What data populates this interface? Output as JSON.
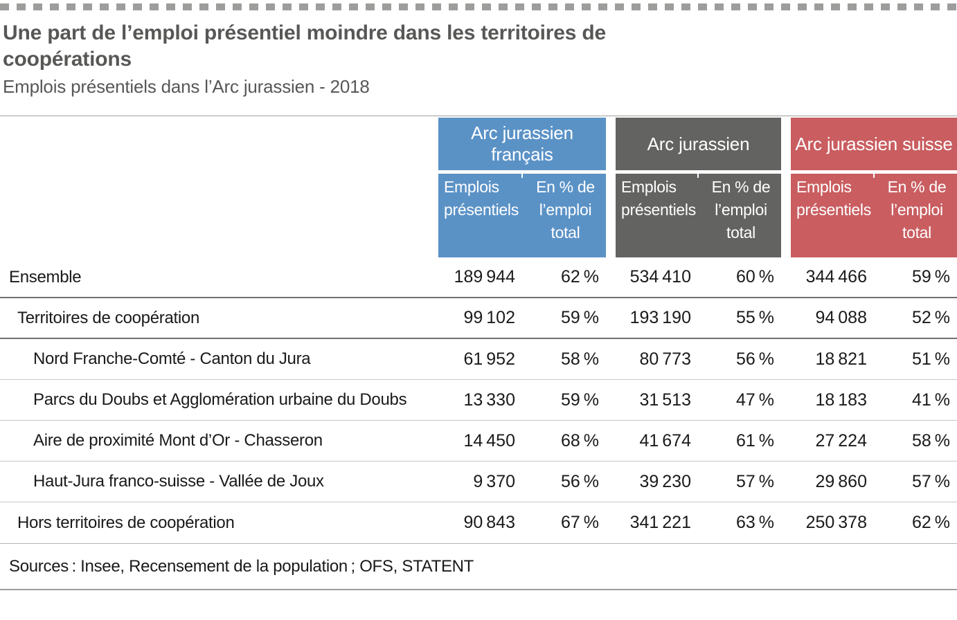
{
  "meta": {
    "accent_blue": "#5b92c6",
    "accent_gray": "#636362",
    "accent_red": "#c95d60",
    "title_color": "#575756",
    "dash_color": "#9d9d9c"
  },
  "header": {
    "title_line1": "Une part de l’emploi présentiel moindre dans les territoires de",
    "title_line2": "coopérations",
    "subtitle": "Emplois présentiels dans l’Arc jurassien - 2018"
  },
  "table": {
    "groups": [
      {
        "label": "Arc jurassien français",
        "col1": "Emplois présentiels",
        "col2": "En % de l’emploi total",
        "color": "#5b92c6"
      },
      {
        "label": "Arc jurassien",
        "col1": "Emplois présentiels",
        "col2": "En % de l’emploi total",
        "color": "#636362"
      },
      {
        "label": "Arc jurassien suisse",
        "col1": "Emplois présentiels",
        "col2": "En % de l’emploi total",
        "color": "#c95d60"
      }
    ],
    "rows": [
      {
        "label": "Ensemble",
        "values": [
          "189 944",
          "62 %",
          "534 410",
          "60 %",
          "344 466",
          "59 %"
        ]
      },
      {
        "label": "Territoires de coopération",
        "values": [
          "99 102",
          "59 %",
          "193 190",
          "55 %",
          "94 088",
          "52 %"
        ]
      },
      {
        "label": "Nord Franche-Comté - Canton du Jura",
        "values": [
          "61 952",
          "58 %",
          "80 773",
          "56 %",
          "18 821",
          "51 %"
        ]
      },
      {
        "label": "Parcs du Doubs et Agglomération urbaine du Doubs",
        "values": [
          "13 330",
          "59 %",
          "31 513",
          "47 %",
          "18 183",
          "41 %"
        ]
      },
      {
        "label": "Aire de proximité Mont d’Or - Chasseron",
        "values": [
          "14 450",
          "68 %",
          "41 674",
          "61 %",
          "27 224",
          "58 %"
        ]
      },
      {
        "label": "Haut-Jura franco-suisse - Vallée de Joux",
        "values": [
          "9 370",
          "56 %",
          "39 230",
          "57 %",
          "29 860",
          "57 %"
        ]
      },
      {
        "label": "Hors territoires de coopération",
        "values": [
          "90 843",
          "67 %",
          "341 221",
          "63 %",
          "250 378",
          "62 %"
        ]
      }
    ]
  },
  "footer": {
    "sources": "Sources : Insee, Recensement de la population ; OFS, STATENT"
  },
  "chart_data": {
    "type": "table",
    "title": "Une part de l’emploi présentiel moindre dans les territoires de coopérations",
    "subtitle": "Emplois présentiels dans l’Arc jurassien - 2018",
    "column_groups": [
      {
        "name": "Arc jurassien français",
        "columns": [
          "Emplois présentiels",
          "En % de l’emploi total"
        ]
      },
      {
        "name": "Arc jurassien",
        "columns": [
          "Emplois présentiels",
          "En % de l’emploi total"
        ]
      },
      {
        "name": "Arc jurassien suisse",
        "columns": [
          "Emplois présentiels",
          "En % de l’emploi total"
        ]
      }
    ],
    "rows": [
      {
        "label": "Ensemble",
        "level": 0,
        "values": [
          189944,
          62,
          534410,
          60,
          344466,
          59
        ]
      },
      {
        "label": "Territoires de coopération",
        "level": 1,
        "values": [
          99102,
          59,
          193190,
          55,
          94088,
          52
        ]
      },
      {
        "label": "Nord Franche-Comté - Canton du Jura",
        "level": 2,
        "values": [
          61952,
          58,
          80773,
          56,
          18821,
          51
        ]
      },
      {
        "label": "Parcs du Doubs et Agglomération urbaine du Doubs",
        "level": 2,
        "values": [
          13330,
          59,
          31513,
          47,
          18183,
          41
        ]
      },
      {
        "label": "Aire de proximité Mont d’Or - Chasseron",
        "level": 2,
        "values": [
          14450,
          68,
          41674,
          61,
          27224,
          58
        ]
      },
      {
        "label": "Haut-Jura franco-suisse - Vallée de Joux",
        "level": 2,
        "values": [
          9370,
          56,
          39230,
          57,
          29860,
          57
        ]
      },
      {
        "label": "Hors territoires de coopération",
        "level": 1,
        "values": [
          90843,
          67,
          341221,
          63,
          250378,
          62
        ]
      }
    ],
    "units": [
      "count",
      "percent"
    ],
    "source": "Insee, Recensement de la population ; OFS, STATENT"
  }
}
